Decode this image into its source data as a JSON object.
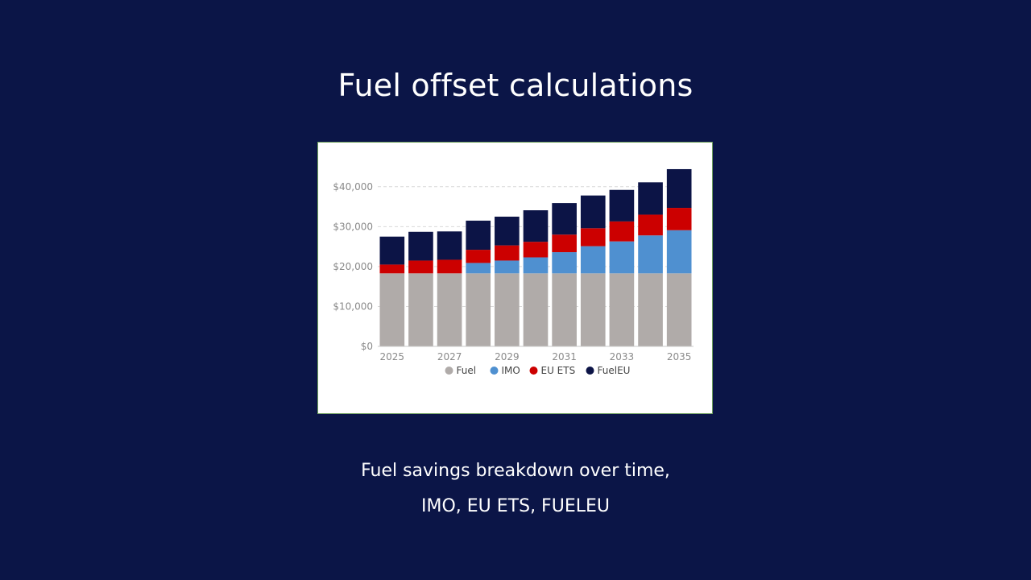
{
  "slide": {
    "title": "Fuel offset calculations",
    "caption_line1": "Fuel savings breakdown over time,",
    "caption_line2": "IMO, EU ETS, FUELEU"
  },
  "colors": {
    "background": "#0b1547",
    "Fuel": "#b0aba9",
    "IMO": "#4f90d0",
    "EU ETS": "#cc0000",
    "FuelEU": "#0c1446"
  },
  "chart_data": {
    "type": "bar",
    "stacked": true,
    "categories": [
      "2025",
      "2026",
      "2027",
      "2028",
      "2029",
      "2030",
      "2031",
      "2032",
      "2033",
      "2034",
      "2035"
    ],
    "x_tick_labels": [
      "2025",
      "2027",
      "2029",
      "2031",
      "2033",
      "2035"
    ],
    "series": [
      {
        "name": "Fuel",
        "values": [
          18300,
          18300,
          18300,
          18300,
          18300,
          18300,
          18300,
          18300,
          18300,
          18300,
          18300
        ]
      },
      {
        "name": "IMO",
        "values": [
          0,
          0,
          0,
          2600,
          3200,
          4000,
          5300,
          6800,
          8000,
          9500,
          10800
        ]
      },
      {
        "name": "EU ETS",
        "values": [
          2200,
          3200,
          3400,
          3300,
          3800,
          3900,
          4400,
          4500,
          5000,
          5200,
          5600
        ]
      },
      {
        "name": "FuelEU",
        "values": [
          7000,
          7200,
          7100,
          7300,
          7200,
          7900,
          7900,
          8200,
          7900,
          8100,
          9700
        ]
      }
    ],
    "ylim": [
      0,
      45000
    ],
    "y_ticks": [
      0,
      10000,
      20000,
      30000,
      40000
    ],
    "y_tick_labels": [
      "$0",
      "$10,000",
      "$20,000",
      "$30,000",
      "$40,000"
    ],
    "grid": true,
    "legend_position": "bottom"
  }
}
